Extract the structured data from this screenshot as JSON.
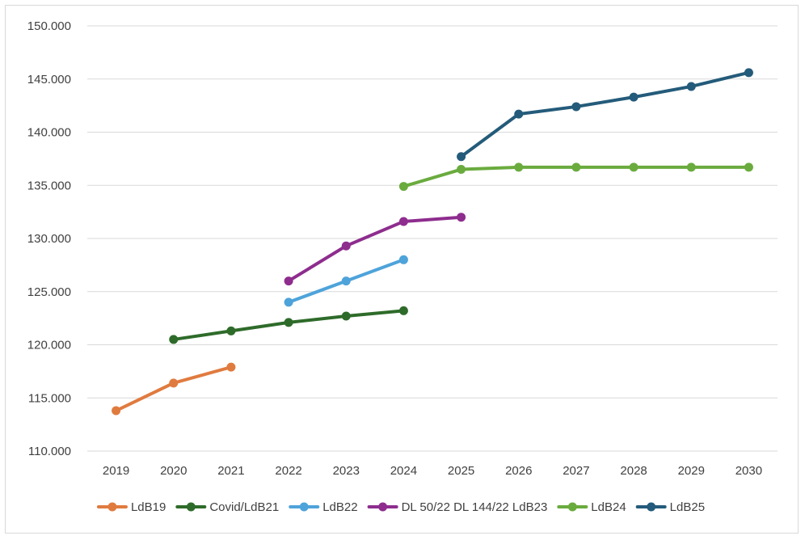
{
  "chart_data": {
    "type": "line",
    "title": "",
    "xlabel": "",
    "ylabel": "",
    "categories": [
      "2019",
      "2020",
      "2021",
      "2022",
      "2023",
      "2024",
      "2025",
      "2026",
      "2027",
      "2028",
      "2029",
      "2030"
    ],
    "ylim": [
      110000,
      150000
    ],
    "yticks": [
      110000,
      115000,
      120000,
      125000,
      130000,
      135000,
      140000,
      145000,
      150000
    ],
    "ytick_labels": [
      "110.000",
      "115.000",
      "120.000",
      "125.000",
      "130.000",
      "135.000",
      "140.000",
      "145.000",
      "150.000"
    ],
    "grid": "horizontal",
    "legend_position": "bottom",
    "series": [
      {
        "name": "LdB19",
        "color": "#E07B3F",
        "values": [
          113800,
          116400,
          117900,
          null,
          null,
          null,
          null,
          null,
          null,
          null,
          null,
          null
        ]
      },
      {
        "name": "Covid/LdB21",
        "color": "#2E6B2A",
        "values": [
          null,
          120500,
          121300,
          122100,
          122700,
          123200,
          null,
          null,
          null,
          null,
          null,
          null
        ]
      },
      {
        "name": "LdB22",
        "color": "#4EA3DA",
        "values": [
          null,
          null,
          null,
          124000,
          126000,
          128000,
          null,
          null,
          null,
          null,
          null,
          null
        ]
      },
      {
        "name": "DL 50/22 DL 144/22 LdB23",
        "color": "#8E2D8E",
        "values": [
          null,
          null,
          null,
          126000,
          129300,
          131600,
          132000,
          null,
          null,
          null,
          null,
          null
        ]
      },
      {
        "name": "LdB24",
        "color": "#6AAB3E",
        "values": [
          null,
          null,
          null,
          null,
          null,
          134900,
          136500,
          136700,
          136700,
          136700,
          136700,
          136700
        ]
      },
      {
        "name": "LdB25",
        "color": "#245B7A",
        "values": [
          null,
          null,
          null,
          null,
          null,
          null,
          137700,
          141700,
          142400,
          143300,
          144300,
          145600
        ]
      }
    ]
  }
}
